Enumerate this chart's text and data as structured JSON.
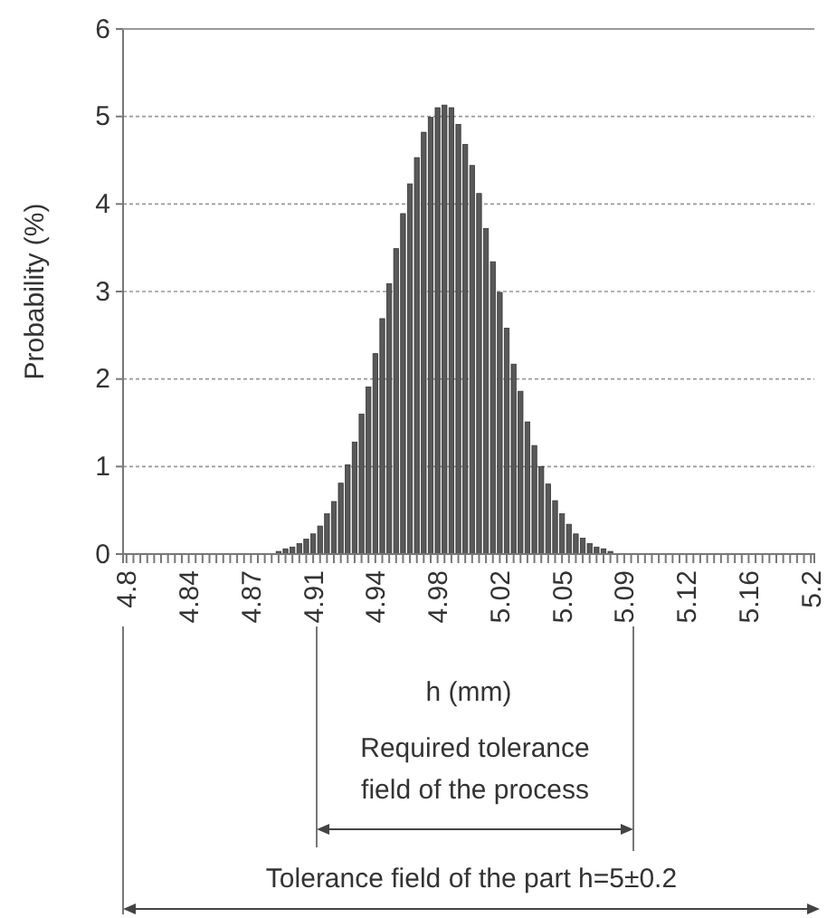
{
  "chart_data": {
    "type": "bar",
    "xlabel": "h (mm)",
    "ylabel": "Probability (%)",
    "categories": [
      "4.8",
      null,
      null,
      null,
      null,
      null,
      null,
      null,
      null,
      "4.84",
      null,
      null,
      null,
      null,
      null,
      null,
      null,
      null,
      "4.87",
      null,
      null,
      null,
      null,
      null,
      null,
      null,
      null,
      "4.91",
      null,
      null,
      null,
      null,
      null,
      null,
      null,
      null,
      "4.94",
      null,
      null,
      null,
      null,
      null,
      null,
      null,
      null,
      "4.98",
      null,
      null,
      null,
      null,
      null,
      null,
      null,
      null,
      "5.02",
      null,
      null,
      null,
      null,
      null,
      null,
      null,
      null,
      "5.05",
      null,
      null,
      null,
      null,
      null,
      null,
      null,
      null,
      "5.09",
      null,
      null,
      null,
      null,
      null,
      null,
      null,
      null,
      "5.12",
      null,
      null,
      null,
      null,
      null,
      null,
      null,
      null,
      "5.16",
      null,
      null,
      null,
      null,
      null,
      null,
      null,
      null,
      "5.2"
    ],
    "values": [
      0,
      0,
      0,
      0,
      0,
      0,
      0,
      0,
      0,
      0,
      0,
      0,
      0,
      0,
      0,
      0,
      0,
      0,
      0,
      0,
      null,
      null,
      0.03,
      0.06,
      0.08,
      0.12,
      0.17,
      0.23,
      0.32,
      0.46,
      0.6,
      0.81,
      1.02,
      1.28,
      1.6,
      1.91,
      2.29,
      2.69,
      3.09,
      3.49,
      3.89,
      4.23,
      4.53,
      4.82,
      4.99,
      5.1,
      5.13,
      5.1,
      4.91,
      4.68,
      4.44,
      4.12,
      3.72,
      3.34,
      2.99,
      2.58,
      2.17,
      1.86,
      1.51,
      1.24,
      1.0,
      0.8,
      0.61,
      0.46,
      0.34,
      0.23,
      0.18,
      0.12,
      0.08,
      0.06,
      0.03,
      null,
      null,
      null,
      0,
      0,
      0,
      0,
      0,
      0,
      0,
      0,
      0,
      0,
      0,
      0,
      0,
      0,
      0,
      0,
      0,
      0,
      0,
      0,
      0,
      0,
      0,
      0,
      0,
      0
    ],
    "color": "#595959",
    "ylim": [
      0,
      6
    ],
    "yticks": [
      0,
      1,
      2,
      3,
      4,
      5,
      6
    ],
    "grid": "y",
    "annotations": [
      "Required tolerance field of the process",
      "Tolerance field of the part h=5±0.2"
    ]
  }
}
